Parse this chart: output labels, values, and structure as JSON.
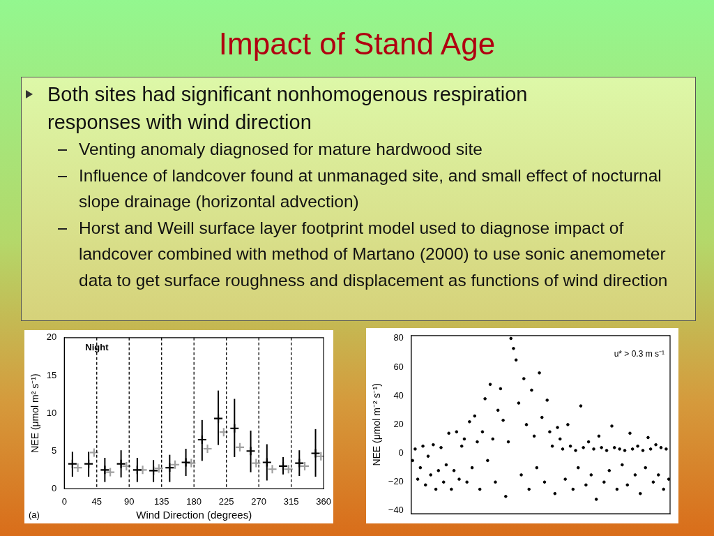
{
  "chart_data": [
    {
      "type": "other",
      "title": "Impact of Stand Age",
      "annotations": [
        "Both sites had significant nonhomogenous respiration responses with wind direction",
        "Venting anomaly diagnosed for mature hardwood site",
        "Influence of landcover found at unmanaged site, and small effect of nocturnal slope drainage (horizontal advection)",
        "Horst and Weill surface layer footprint model used to diagnose impact of landcover combined with method of Martano (2000) to use sonic anemometer data to get surface roughness and displacement as functions of wind direction"
      ]
    },
    {
      "type": "scatter",
      "xlabel": "Wind Direction (degrees)",
      "ylabel": "NEE (μmol m² s⁻¹)",
      "xlim": [
        0,
        360
      ],
      "xticks": [
        0,
        45,
        90,
        135,
        180,
        225,
        270,
        315,
        360
      ],
      "ylim": [
        0,
        20
      ],
      "yticks": [
        0,
        5,
        10,
        15,
        20
      ],
      "grid": false,
      "legend": false,
      "series": [
        {
          "color": "#000000",
          "marker": "cross",
          "x": [
            11.25,
            33.75,
            56.25,
            78.75,
            101.25,
            123.75,
            146.25,
            168.75,
            191.25,
            213.75,
            236.25,
            258.75,
            281.25,
            303.75,
            326.25,
            348.75
          ],
          "values": [
            3.3,
            3.3,
            2.5,
            3.3,
            2.5,
            2.4,
            2.8,
            3.5,
            6.5,
            9.3,
            8.0,
            5.0,
            3.5,
            3.0,
            3.4,
            4.7
          ],
          "errors": [
            [
              1.6,
              4.9
            ],
            [
              1.6,
              4.9
            ],
            [
              0.9,
              4.1
            ],
            [
              1.5,
              5.1
            ],
            [
              0.9,
              4.1
            ],
            [
              0.9,
              3.8
            ],
            [
              0.9,
              4.5
            ],
            [
              1.7,
              5.3
            ],
            [
              3.7,
              9.1
            ],
            [
              5.8,
              13.0
            ],
            [
              4.2,
              11.9
            ],
            [
              2.2,
              7.7
            ],
            [
              1.1,
              5.9
            ],
            [
              1.9,
              4.2
            ],
            [
              1.7,
              5.1
            ],
            [
              1.6,
              7.9
            ]
          ]
        },
        {
          "color": "#a0a0a0",
          "marker": "cross",
          "x": [
            18.75,
            41.25,
            63.75,
            86.25,
            108.75,
            131.25,
            153.75,
            176.25,
            198.75,
            221.25,
            243.75,
            266.25,
            288.75,
            311.25,
            333.75,
            356.25
          ],
          "values": [
            2.8,
            4.8,
            2.2,
            3.0,
            2.5,
            2.7,
            3.2,
            3.4,
            5.3,
            7.5,
            5.5,
            3.4,
            2.6,
            2.6,
            3.0,
            4.3
          ]
        }
      ],
      "ref_lines": [
        {
          "axis": "x",
          "value": 45,
          "line_style": "dashed",
          "color": "#000000"
        },
        {
          "axis": "x",
          "value": 90,
          "line_style": "dashed",
          "color": "#000000"
        },
        {
          "axis": "x",
          "value": 135,
          "line_style": "dashed",
          "color": "#000000"
        },
        {
          "axis": "x",
          "value": 180,
          "line_style": "dashed",
          "color": "#000000"
        },
        {
          "axis": "x",
          "value": 225,
          "line_style": "dashed",
          "color": "#000000"
        },
        {
          "axis": "x",
          "value": 270,
          "line_style": "dashed",
          "color": "#000000"
        },
        {
          "axis": "x",
          "value": 315,
          "line_style": "dashed",
          "color": "#000000"
        }
      ],
      "annotations": [
        "Night",
        "(a)"
      ]
    },
    {
      "type": "scatter",
      "ylabel": "NEE (μmol m⁻² s⁻¹)",
      "ylim": [
        -42,
        82
      ],
      "yticks": [
        {
          "value": -40,
          "label": "−40"
        },
        {
          "value": -20,
          "label": "−20"
        },
        0,
        20,
        40,
        60,
        80
      ],
      "tick_labels": "y",
      "grid": false,
      "legend": false,
      "marker": "circle",
      "color": "#000000",
      "annotations": [
        "u* > 0.3 m s⁻¹"
      ],
      "categories": [
        null,
        null,
        null,
        null,
        null,
        null,
        null,
        null,
        null,
        null,
        null,
        null,
        null,
        null,
        null,
        null,
        null,
        null,
        null,
        null,
        null,
        null,
        null,
        null,
        null,
        null,
        null,
        null,
        null,
        null,
        null,
        null,
        null,
        null,
        null,
        null,
        null,
        null,
        null,
        null,
        null,
        null,
        null,
        null,
        null,
        null,
        null,
        null,
        null,
        null,
        null,
        null,
        null,
        null,
        null,
        null,
        null,
        null,
        null,
        null,
        null,
        null,
        null,
        null,
        null,
        null,
        null,
        null,
        null,
        null,
        null,
        null,
        null,
        null,
        null,
        null,
        null,
        null,
        null,
        null,
        null,
        null,
        null,
        null,
        null,
        null,
        null,
        null,
        null,
        null,
        null,
        null,
        null,
        null,
        null,
        null,
        null,
        null,
        null,
        null
      ],
      "values": [
        -5,
        3,
        -18,
        -10,
        5,
        -22,
        -2,
        -15,
        6,
        -25,
        -12,
        4,
        -20,
        -8,
        14,
        -25,
        -12,
        15,
        -18,
        5,
        10,
        -20,
        22,
        -10,
        26,
        8,
        -25,
        15,
        38,
        -5,
        48,
        10,
        -20,
        30,
        45,
        23,
        -30,
        8,
        80,
        73,
        65,
        35,
        -15,
        52,
        20,
        -25,
        44,
        12,
        -10,
        56,
        25,
        -20,
        37,
        15,
        5,
        -28,
        18,
        10,
        3,
        -18,
        20,
        5,
        -25,
        2,
        -10,
        33,
        4,
        -22,
        8,
        -15,
        3,
        -32,
        12,
        4,
        -20,
        2,
        -12,
        19,
        4,
        -25,
        3,
        -8,
        2,
        -22,
        14,
        3,
        -15,
        5,
        -28,
        2,
        -10,
        11,
        3,
        -20,
        6,
        -15,
        4,
        -25,
        3,
        -18
      ]
    }
  ]
}
